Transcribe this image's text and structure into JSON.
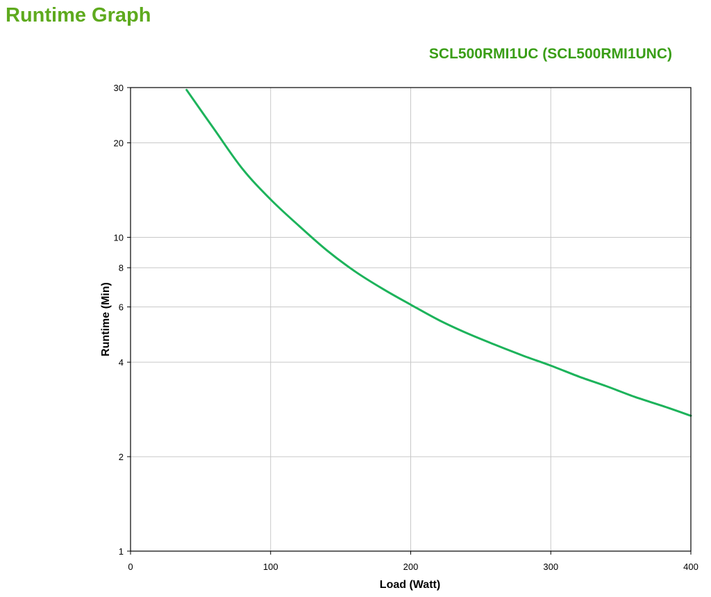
{
  "header": {
    "title": "Runtime Graph",
    "model": "SCL500RMI1UC (SCL500RMI1UNC)"
  },
  "colors": {
    "title": "#5eaa1e",
    "model": "#3a9e17",
    "series": "#1db35b",
    "grid": "#c8c8c8",
    "axis": "#000000"
  },
  "chart_data": {
    "type": "line",
    "title": "SCL500RMI1UC (SCL500RMI1UNC)",
    "xlabel": "Load (Watt)",
    "ylabel": "Runtime (Min)",
    "xlim": [
      0,
      400
    ],
    "ylim": [
      1,
      30
    ],
    "yscale": "log",
    "grid": true,
    "x_ticks": [
      0,
      100,
      200,
      300,
      400
    ],
    "x_tick_labels": [
      "0",
      "100",
      "200",
      "300",
      "400"
    ],
    "y_ticks": [
      1,
      2,
      4,
      6,
      8,
      10,
      20,
      30
    ],
    "y_tick_labels": [
      "1",
      "2",
      "4",
      "6",
      "8",
      "10",
      "20",
      "30"
    ],
    "series": [
      {
        "x": [
          40,
          60,
          80,
          100,
          120,
          140,
          160,
          180,
          200,
          220,
          240,
          260,
          280,
          300,
          320,
          340,
          360,
          380,
          400
        ],
        "y": [
          29.5,
          22.0,
          16.5,
          13.2,
          10.9,
          9.1,
          7.8,
          6.85,
          6.1,
          5.45,
          4.95,
          4.55,
          4.2,
          3.9,
          3.6,
          3.35,
          3.1,
          2.9,
          2.7
        ]
      }
    ]
  }
}
